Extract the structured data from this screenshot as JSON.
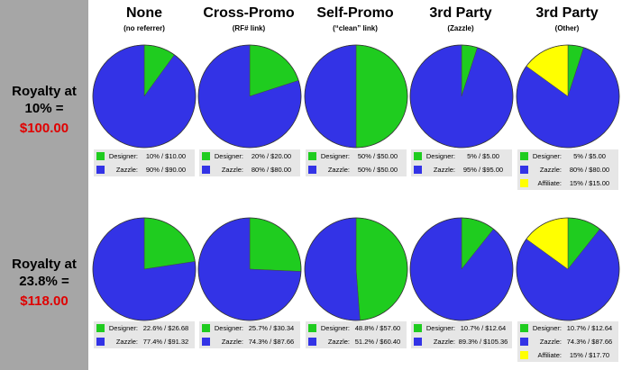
{
  "columns": [
    {
      "title": "None",
      "subtitle": "(no referrer)"
    },
    {
      "title": "Cross-Promo",
      "subtitle": "(RF# link)"
    },
    {
      "title": "Self-Promo",
      "subtitle": "(“clean” link)"
    },
    {
      "title": "3rd Party",
      "subtitle": "(Zazzle)"
    },
    {
      "title": "3rd Party",
      "subtitle": "(Other)"
    }
  ],
  "rows": [
    {
      "label_line1": "Royalty at",
      "label_line2": "10% =",
      "amount": "$100.00"
    },
    {
      "label_line1": "Royalty at",
      "label_line2": "23.8% =",
      "amount": "$118.00"
    }
  ],
  "colors": {
    "Designer": "#1fcc1f",
    "Zazzle": "#3333e6",
    "Affiliate": "#ffff00",
    "sidebar": "#a6a6a6",
    "amount": "#e00000",
    "legend_bg": "#e6e6e6"
  },
  "chart_data": [
    {
      "type": "pie",
      "series": [
        {
          "name": "Designer",
          "value": 10,
          "label": "10% / $10.00"
        },
        {
          "name": "Zazzle",
          "value": 90,
          "label": "90% / $90.00"
        }
      ]
    },
    {
      "type": "pie",
      "series": [
        {
          "name": "Designer",
          "value": 20,
          "label": "20% / $20.00"
        },
        {
          "name": "Zazzle",
          "value": 80,
          "label": "80% / $80.00"
        }
      ]
    },
    {
      "type": "pie",
      "series": [
        {
          "name": "Designer",
          "value": 50,
          "label": "50% / $50.00"
        },
        {
          "name": "Zazzle",
          "value": 50,
          "label": "50% / $50.00"
        }
      ]
    },
    {
      "type": "pie",
      "series": [
        {
          "name": "Designer",
          "value": 5,
          "label": "5% / $5.00"
        },
        {
          "name": "Zazzle",
          "value": 95,
          "label": "95% / $95.00"
        }
      ]
    },
    {
      "type": "pie",
      "series": [
        {
          "name": "Designer",
          "value": 5,
          "label": "5% / $5.00"
        },
        {
          "name": "Zazzle",
          "value": 80,
          "label": "80% / $80.00"
        },
        {
          "name": "Affiliate",
          "value": 15,
          "label": "15% / $15.00"
        }
      ]
    },
    {
      "type": "pie",
      "series": [
        {
          "name": "Designer",
          "value": 22.6,
          "label": "22.6% / $26.68"
        },
        {
          "name": "Zazzle",
          "value": 77.4,
          "label": "77.4% / $91.32"
        }
      ]
    },
    {
      "type": "pie",
      "series": [
        {
          "name": "Designer",
          "value": 25.7,
          "label": "25.7% / $30.34"
        },
        {
          "name": "Zazzle",
          "value": 74.3,
          "label": "74.3% / $87.66"
        }
      ]
    },
    {
      "type": "pie",
      "series": [
        {
          "name": "Designer",
          "value": 48.8,
          "label": "48.8% / $57.60"
        },
        {
          "name": "Zazzle",
          "value": 51.2,
          "label": "51.2% / $60.40"
        }
      ]
    },
    {
      "type": "pie",
      "series": [
        {
          "name": "Designer",
          "value": 10.7,
          "label": "10.7% / $12.64"
        },
        {
          "name": "Zazzle",
          "value": 89.3,
          "label": "89.3% / $105.36"
        }
      ]
    },
    {
      "type": "pie",
      "series": [
        {
          "name": "Designer",
          "value": 10.7,
          "label": "10.7% / $12.64"
        },
        {
          "name": "Zazzle",
          "value": 74.3,
          "label": "74.3% / $87.66"
        },
        {
          "name": "Affiliate",
          "value": 15,
          "label": "15% / $17.70"
        }
      ]
    }
  ]
}
